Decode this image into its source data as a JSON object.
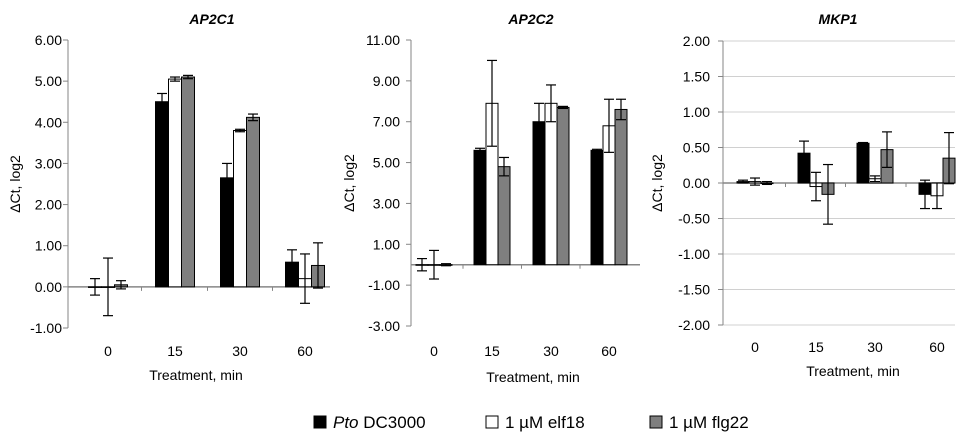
{
  "chart_data": [
    {
      "type": "bar",
      "title": "AP2C1",
      "xlabel": "Treatment, min",
      "ylabel": "ΔCt, log2",
      "ylim": [
        -1,
        6
      ],
      "yticks": [
        "-1.00",
        "0.00",
        "1.00",
        "2.00",
        "3.00",
        "4.00",
        "5.00",
        "6.00"
      ],
      "categories": [
        "0",
        "15",
        "30",
        "60"
      ],
      "grid": false,
      "series": [
        {
          "name": "Pto DC3000",
          "values": [
            0,
            4.5,
            2.65,
            0.6
          ],
          "errors": [
            0.2,
            0.2,
            0.35,
            0.3
          ]
        },
        {
          "name": "1 µM elf18",
          "values": [
            0,
            5.05,
            3.8,
            0.2
          ],
          "errors": [
            0.7,
            0.05,
            0.03,
            0.6
          ]
        },
        {
          "name": "1 µM flg22",
          "values": [
            0.05,
            5.1,
            4.12,
            0.52
          ],
          "errors": [
            0.1,
            0.04,
            0.08,
            0.55
          ]
        }
      ]
    },
    {
      "type": "bar",
      "title": "AP2C2",
      "xlabel": "Treatment, min",
      "ylabel": "ΔCt, log2",
      "ylim": [
        -3,
        11
      ],
      "yticks": [
        "-3.00",
        "-1.00",
        "1.00",
        "3.00",
        "5.00",
        "7.00",
        "9.00",
        "11.00"
      ],
      "categories": [
        "0",
        "15",
        "30",
        "60"
      ],
      "grid": false,
      "series": [
        {
          "name": "Pto DC3000",
          "values": [
            0,
            5.6,
            7.0,
            5.6
          ],
          "errors": [
            0.3,
            0.1,
            0.9,
            0.05
          ]
        },
        {
          "name": "1 µM elf18",
          "values": [
            0,
            7.9,
            7.9,
            6.8
          ],
          "errors": [
            0.7,
            2.1,
            0.9,
            1.3
          ]
        },
        {
          "name": "1 µM flg22",
          "values": [
            0,
            4.8,
            7.7,
            7.6
          ],
          "errors": [
            0.05,
            0.45,
            0.05,
            0.5
          ]
        }
      ]
    },
    {
      "type": "bar",
      "title": "MKP1",
      "xlabel": "Treatment, min",
      "ylabel": "ΔCt, log2",
      "ylim": [
        -2,
        2
      ],
      "yticks": [
        "-2.00",
        "-1.50",
        "-1.00",
        "-0.50",
        "0.00",
        "0.50",
        "1.00",
        "1.50",
        "2.00"
      ],
      "categories": [
        "0",
        "15",
        "30",
        "60"
      ],
      "grid": true,
      "series": [
        {
          "name": "Pto DC3000",
          "values": [
            0.02,
            0.42,
            0.56,
            -0.16
          ],
          "errors": [
            0.02,
            0.17,
            0.01,
            0.2
          ]
        },
        {
          "name": "1 µM elf18",
          "values": [
            0.02,
            -0.05,
            0.06,
            -0.18
          ],
          "errors": [
            0.05,
            0.2,
            0.04,
            0.18
          ]
        },
        {
          "name": "1 µM flg22",
          "values": [
            0,
            -0.16,
            0.47,
            0.35
          ],
          "errors": [
            0.02,
            0.42,
            0.25,
            0.36
          ]
        }
      ]
    }
  ],
  "legend": {
    "placement": "bottom-center",
    "items": [
      {
        "prefix_italic": "Pto",
        "text": " DC3000",
        "color": "#000000"
      },
      {
        "prefix_italic": "",
        "text": "1 µM elf18",
        "color": "#ffffff"
      },
      {
        "prefix_italic": "",
        "text": "1 µM flg22",
        "color": "#7f7f7f"
      }
    ]
  },
  "colors": {
    "series": [
      "#000000",
      "#ffffff",
      "#7f7f7f"
    ],
    "bar_stroke": "#000000",
    "axis": "#868686",
    "grid": "#d0d0d0",
    "zero_line": "#868686"
  }
}
